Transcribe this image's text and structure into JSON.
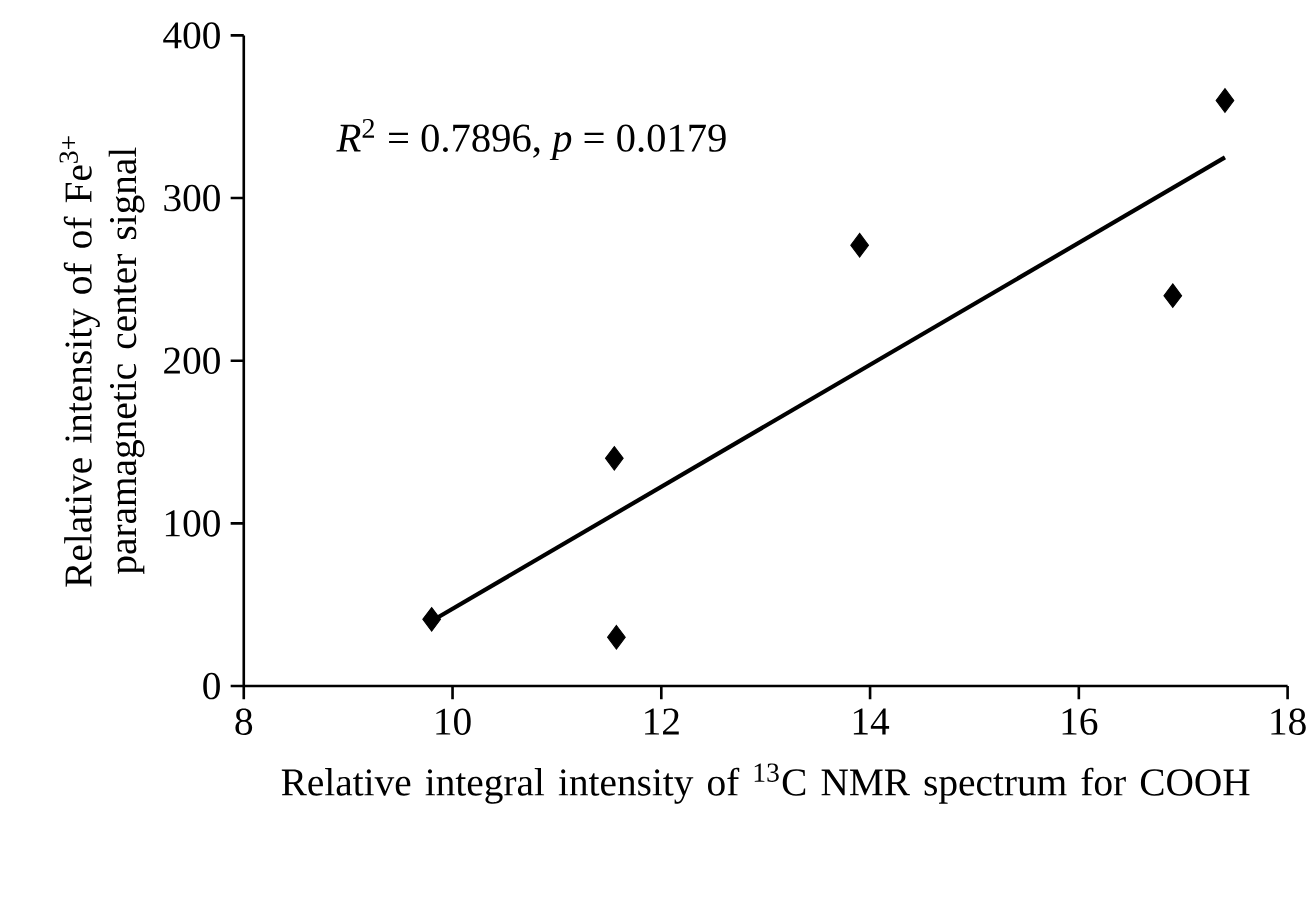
{
  "chart_data": {
    "type": "scatter",
    "xlabel": "Relative integral intensity of $^{13}$C NMR spectrum for COOH",
    "ylabel": "Relative intensity of of Fe$^{3+}$ paramagnetic center signal",
    "annotations": [
      "*R*$^{2}$ = 0.7896, *p* = 0.0179"
    ],
    "series": [
      {
        "color": "#000000",
        "marker": "diamond",
        "x": [
          9.8,
          11.55,
          11.57,
          13.9,
          16.9,
          17.4
        ],
        "values": [
          41,
          140,
          30,
          271,
          240,
          360
        ]
      },
      {
        "type": "line",
        "color": "#000000",
        "marker": "none",
        "line_style": "solid",
        "x": [
          9.8,
          17.4
        ],
        "values": [
          40,
          325
        ]
      }
    ],
    "xlim": [
      8,
      18
    ],
    "xticks": [
      8,
      10,
      12,
      14,
      16,
      18
    ],
    "ylim": [
      0,
      400
    ],
    "yticks": [
      0,
      100,
      200,
      300,
      400
    ],
    "grid": false
  }
}
